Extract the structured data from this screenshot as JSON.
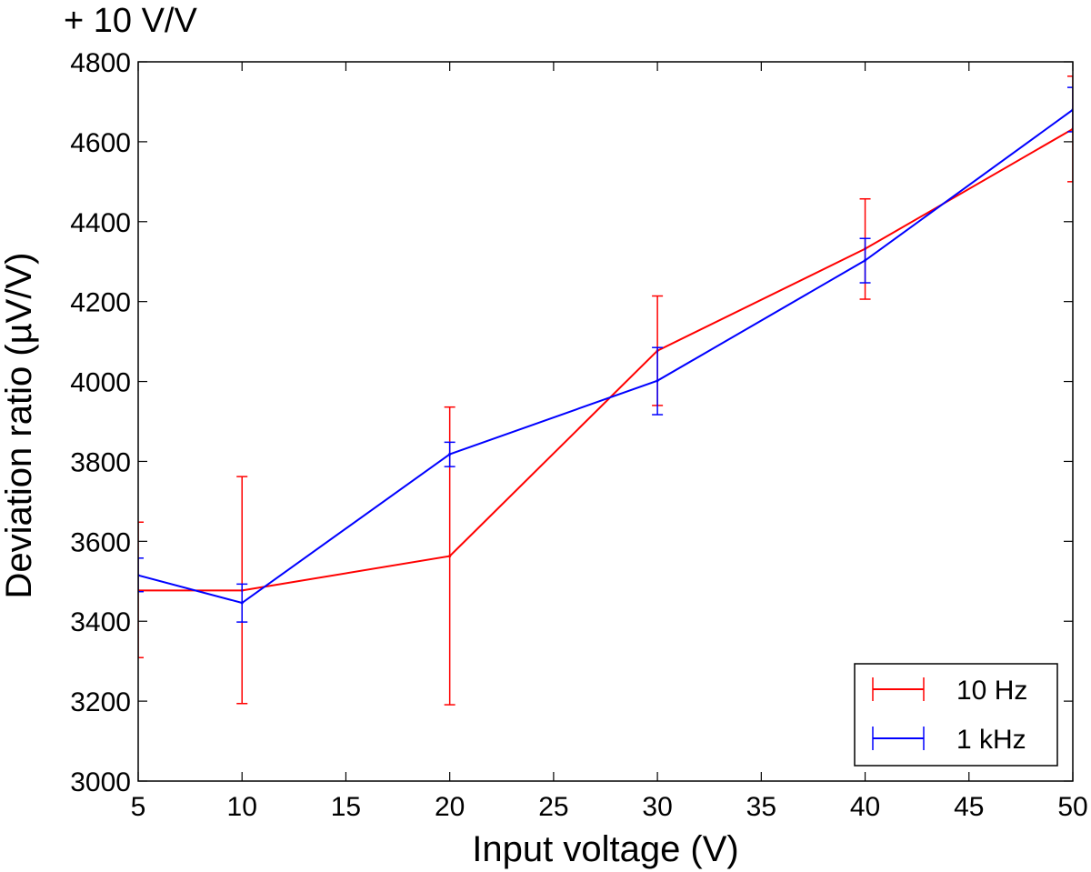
{
  "page_title": "+ 10 V/V",
  "chart_data": {
    "type": "line",
    "title": "+ 10 V/V",
    "xlabel": "Input voltage (V)",
    "ylabel": "Deviation ratio (µV/V)",
    "xlim": [
      5,
      50
    ],
    "ylim": [
      3000,
      4800
    ],
    "xticks": [
      5,
      10,
      15,
      20,
      25,
      30,
      35,
      40,
      45,
      50
    ],
    "yticks": [
      3000,
      3200,
      3400,
      3600,
      3800,
      4000,
      4200,
      4400,
      4600,
      4800
    ],
    "grid": false,
    "legend_position": "bottom-right",
    "series": [
      {
        "name": "10 Hz",
        "color": "#ff0000",
        "x": [
          5,
          10,
          20,
          30,
          40,
          50
        ],
        "y": [
          3477,
          3477,
          3563,
          4077,
          4332,
          4632
        ],
        "yerr_low": [
          3309,
          3194,
          3191,
          3940,
          4206,
          4500
        ],
        "yerr_high": [
          3648,
          3762,
          3936,
          4214,
          4457,
          4764
        ]
      },
      {
        "name": "1 kHz",
        "color": "#0000ff",
        "x": [
          5,
          10,
          20,
          30,
          40,
          50
        ],
        "y": [
          3515,
          3446,
          3818,
          4002,
          4303,
          4680
        ],
        "yerr_low": [
          3474,
          3398,
          3787,
          3917,
          4247,
          4625
        ],
        "yerr_high": [
          3558,
          3493,
          3848,
          4085,
          4358,
          4736
        ]
      }
    ]
  }
}
